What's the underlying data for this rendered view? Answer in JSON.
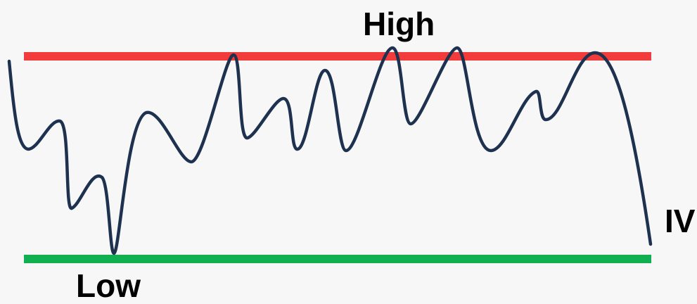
{
  "labels": {
    "high": "High",
    "low": "Low",
    "iv": "IV"
  },
  "colors": {
    "background": "#f7f7f7",
    "high_line": "#f23b3b",
    "low_line": "#10b050",
    "price_line": "#1e3250",
    "text": "#000000"
  }
}
